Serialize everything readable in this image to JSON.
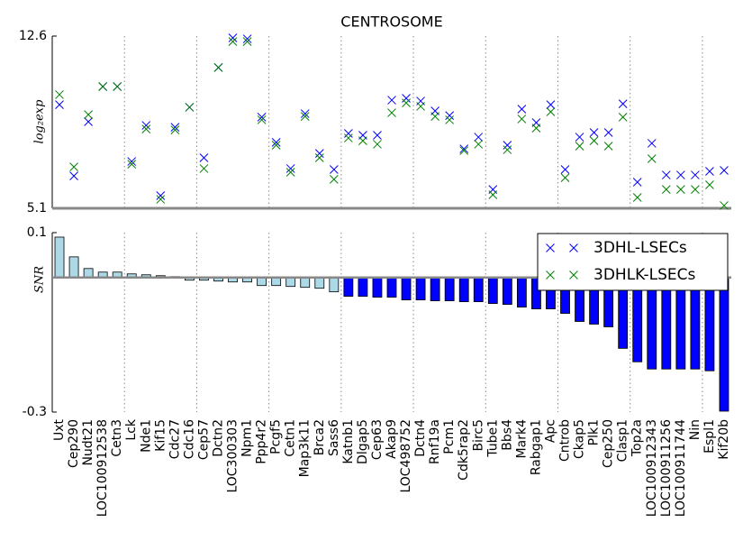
{
  "chart_data": [
    {
      "type": "scatter",
      "title": "CENTROSOME",
      "ylabel": "log₂exp",
      "ylim": [
        5.1,
        12.6
      ],
      "yticks": [
        5.1,
        12.6
      ],
      "marker": "x",
      "legend": "upper right",
      "series": [
        {
          "name": "3DHL-LSECs",
          "color": "#0000ff",
          "values": [
            9.61,
            6.51,
            8.87,
            10.4,
            10.4,
            7.14,
            8.71,
            5.65,
            8.63,
            9.5,
            7.3,
            11.23,
            12.52,
            12.48,
            9.07,
            7.97,
            6.83,
            9.22,
            7.49,
            6.79,
            8.36,
            8.28,
            8.28,
            9.81,
            9.89,
            9.77,
            9.34,
            9.14,
            7.69,
            8.2,
            5.92,
            7.85,
            9.42,
            8.83,
            9.61,
            6.79,
            8.2,
            8.4,
            8.4,
            9.65,
            6.24,
            7.93,
            6.55,
            6.55,
            6.55,
            6.71,
            6.75
          ]
        },
        {
          "name": "3DHLK-LSECs",
          "color": "#008000",
          "values": [
            10.05,
            6.9,
            9.18,
            10.4,
            10.4,
            7.02,
            8.55,
            5.49,
            8.51,
            9.5,
            6.83,
            11.23,
            12.36,
            12.36,
            8.95,
            7.85,
            6.67,
            9.1,
            7.3,
            6.36,
            8.16,
            8.04,
            7.89,
            9.26,
            9.69,
            9.54,
            9.1,
            8.95,
            7.61,
            7.89,
            5.69,
            7.65,
            8.99,
            8.59,
            9.3,
            6.43,
            7.81,
            8.04,
            7.81,
            9.07,
            5.57,
            7.26,
            5.92,
            5.92,
            5.92,
            6.12,
            5.22
          ]
        }
      ]
    },
    {
      "type": "bar",
      "ylabel": "SNR",
      "ylim": [
        -0.3,
        0.1
      ],
      "yticks": [
        -0.3,
        0.1
      ],
      "categories": [
        "Uxt",
        "Cep290",
        "Nudt21",
        "LOC100912538",
        "Cetn3",
        "Lck",
        "Nde1",
        "Kif15",
        "Cdc27",
        "Cdc16",
        "Cep57",
        "Dctn2",
        "LOC300303",
        "Npm1",
        "Ppp4r2",
        "Pcgf5",
        "Cetn1",
        "Map3k11",
        "Brca2",
        "Sass6",
        "Katnb1",
        "Dlgap5",
        "Cep63",
        "Akap9",
        "LOC498752",
        "Dctn4",
        "Rnf19a",
        "Pcm1",
        "Cdk5rap2",
        "Birc5",
        "Tube1",
        "Bbs4",
        "Mark4",
        "Rabgap1",
        "Apc",
        "Cntrob",
        "Ckap5",
        "Plk1",
        "Cep250",
        "Clasp1",
        "Top2a",
        "LOC100912343",
        "LOC100911256",
        "LOC100911744",
        "Nin",
        "Espl1",
        "Kif20b"
      ],
      "values": [
        0.09,
        0.046,
        0.02,
        0.012,
        0.012,
        0.008,
        0.006,
        0.004,
        0.002,
        -0.006,
        -0.006,
        -0.008,
        -0.01,
        -0.01,
        -0.018,
        -0.018,
        -0.02,
        -0.022,
        -0.024,
        -0.032,
        -0.042,
        -0.042,
        -0.044,
        -0.044,
        -0.05,
        -0.05,
        -0.052,
        -0.052,
        -0.054,
        -0.054,
        -0.058,
        -0.06,
        -0.066,
        -0.07,
        -0.07,
        -0.08,
        -0.098,
        -0.104,
        -0.11,
        -0.158,
        -0.188,
        -0.204,
        -0.204,
        -0.204,
        -0.204,
        -0.208,
        -0.298
      ],
      "colors": [
        "#add8e6",
        "#add8e6",
        "#add8e6",
        "#add8e6",
        "#add8e6",
        "#add8e6",
        "#add8e6",
        "#add8e6",
        "#add8e6",
        "#add8e6",
        "#add8e6",
        "#add8e6",
        "#add8e6",
        "#add8e6",
        "#add8e6",
        "#add8e6",
        "#add8e6",
        "#add8e6",
        "#add8e6",
        "#add8e6",
        "#0000ff",
        "#0000ff",
        "#0000ff",
        "#0000ff",
        "#0000ff",
        "#0000ff",
        "#0000ff",
        "#0000ff",
        "#0000ff",
        "#0000ff",
        "#0000ff",
        "#0000ff",
        "#0000ff",
        "#0000ff",
        "#0000ff",
        "#0000ff",
        "#0000ff",
        "#0000ff",
        "#0000ff",
        "#0000ff",
        "#0000ff",
        "#0000ff",
        "#0000ff",
        "#0000ff",
        "#0000ff",
        "#0000ff",
        "#0000ff"
      ]
    }
  ]
}
